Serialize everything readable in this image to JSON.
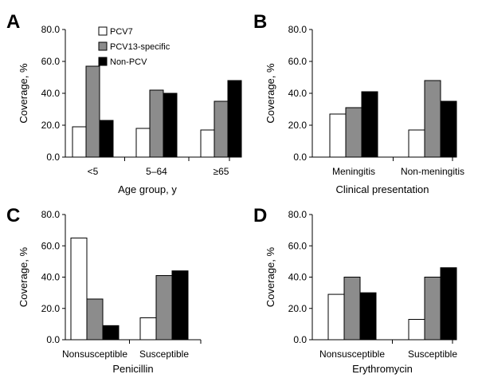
{
  "legend": [
    {
      "name": "PCV7",
      "color": "#ffffff"
    },
    {
      "name": "PCV13-specific",
      "color": "#8c8c8c"
    },
    {
      "name": "Non-PCV",
      "color": "#000000"
    }
  ],
  "chart_data": [
    {
      "panel": "A",
      "type": "bar",
      "xlabel": "Age group, y",
      "ylabel": "Coverage, %",
      "ylim": [
        0,
        80
      ],
      "yticks": [
        "0.0",
        "20.0",
        "40.0",
        "60.0",
        "80.0"
      ],
      "categories": [
        "<5",
        "5–64",
        "≥65"
      ],
      "series": [
        {
          "name": "PCV7",
          "values": [
            19,
            18,
            17
          ]
        },
        {
          "name": "PCV13-specific",
          "values": [
            57,
            42,
            35
          ]
        },
        {
          "name": "Non-PCV",
          "values": [
            23,
            40,
            48
          ]
        }
      ]
    },
    {
      "panel": "B",
      "type": "bar",
      "xlabel": "Clinical presentation",
      "ylabel": "Coverage, %",
      "ylim": [
        0,
        80
      ],
      "yticks": [
        "0.0",
        "20.0",
        "40.0",
        "60.0",
        "80.0"
      ],
      "categories": [
        "Meningitis",
        "Non-meningitis"
      ],
      "series": [
        {
          "name": "PCV7",
          "values": [
            27,
            17
          ]
        },
        {
          "name": "PCV13-specific",
          "values": [
            31,
            48
          ]
        },
        {
          "name": "Non-PCV",
          "values": [
            41,
            35
          ]
        }
      ]
    },
    {
      "panel": "C",
      "type": "bar",
      "xlabel": "Penicillin",
      "ylabel": "Coverage, %",
      "ylim": [
        0,
        80
      ],
      "yticks": [
        "0.0",
        "20.0",
        "40.0",
        "60.0",
        "80.0"
      ],
      "categories": [
        "Nonsusceptible",
        "Susceptible"
      ],
      "series": [
        {
          "name": "PCV7",
          "values": [
            65,
            14
          ]
        },
        {
          "name": "PCV13-specific",
          "values": [
            26,
            41
          ]
        },
        {
          "name": "Non-PCV",
          "values": [
            9,
            44
          ]
        }
      ]
    },
    {
      "panel": "D",
      "type": "bar",
      "xlabel": "Erythromycin",
      "ylabel": "Coverage, %",
      "ylim": [
        0,
        80
      ],
      "yticks": [
        "0.0",
        "20.0",
        "40.0",
        "60.0",
        "80.0"
      ],
      "categories": [
        "Nonsusceptible",
        "Susceptible"
      ],
      "series": [
        {
          "name": "PCV7",
          "values": [
            29,
            13
          ]
        },
        {
          "name": "PCV13-specific",
          "values": [
            40,
            40
          ]
        },
        {
          "name": "Non-PCV",
          "values": [
            30,
            46
          ]
        }
      ]
    }
  ]
}
